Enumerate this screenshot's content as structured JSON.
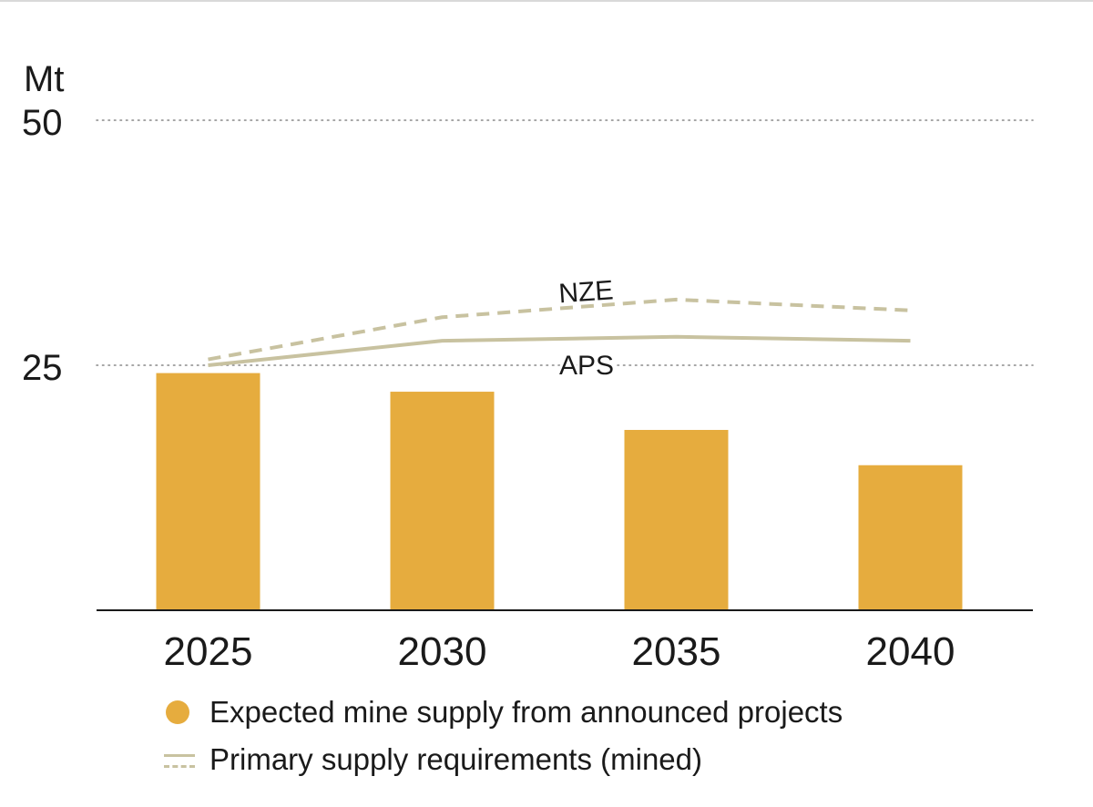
{
  "chart_data": {
    "type": "bar",
    "unit_label": "Mt",
    "categories": [
      "2025",
      "2030",
      "2035",
      "2040"
    ],
    "ylim": [
      0,
      50
    ],
    "yticks": [
      25,
      50
    ],
    "grid": "dotted horizontal",
    "series": [
      {
        "name": "Expected mine supply from announced projects",
        "type": "bar",
        "color": "#E6AC3E",
        "values": [
          24.2,
          22.3,
          18.4,
          14.8
        ]
      },
      {
        "name": "APS",
        "type": "line",
        "style": "solid",
        "color": "#C8C2A0",
        "values": [
          25.0,
          27.5,
          27.9,
          27.5
        ]
      },
      {
        "name": "NZE",
        "type": "line",
        "style": "dashed",
        "color": "#C8C2A0",
        "values": [
          25.6,
          29.9,
          31.7,
          30.6
        ]
      }
    ],
    "legend": {
      "position": "bottom-left",
      "items": [
        {
          "label": "Expected mine supply from announced projects",
          "swatch": "dot",
          "color": "#E6AC3E"
        },
        {
          "label": "Primary supply requirements (mined)",
          "swatch": "solid-and-dashed-line",
          "color": "#C8C2A0"
        }
      ]
    }
  }
}
